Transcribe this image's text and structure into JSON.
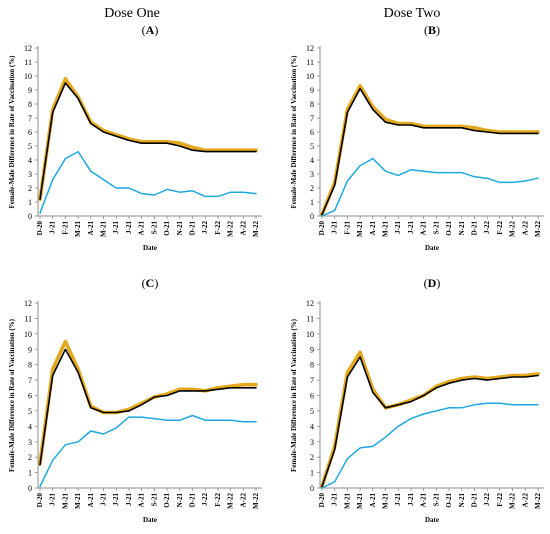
{
  "headers": {
    "left": "Dose One",
    "right": "Dose Two"
  },
  "colors": {
    "outer_gold": "#E3A81C",
    "inner_black": "#000000",
    "blue": "#1DA8DE",
    "axis": "#8c8c8c"
  },
  "chart_data": [
    {
      "type": "line",
      "panel_label": "A",
      "xlabel": "Date",
      "ylabel": "Female-Male Difference in Rate of Vaccination (%)",
      "ylim": [
        0,
        12
      ],
      "yticks": [
        0,
        1,
        2,
        3,
        4,
        5,
        6,
        7,
        8,
        9,
        10,
        11,
        12
      ],
      "grid": false,
      "x": [
        "D-20",
        "J-21",
        "F-21",
        "M-21",
        "A-21",
        "M-21",
        "J-21",
        "J-21",
        "A-21",
        "S-21",
        "O-21",
        "N-21",
        "D-21",
        "J-22",
        "F-22",
        "M-22",
        "A-22",
        "M-22"
      ],
      "series": [
        {
          "color": "gold",
          "values": [
            1.2,
            7.6,
            9.8,
            8.5,
            6.7,
            6.1,
            5.8,
            5.5,
            5.3,
            5.3,
            5.3,
            5.2,
            4.9,
            4.7,
            4.7,
            4.7,
            4.7,
            4.7
          ]
        },
        {
          "color": "black",
          "values": [
            1.2,
            7.4,
            9.5,
            8.4,
            6.6,
            6.0,
            5.7,
            5.4,
            5.2,
            5.2,
            5.2,
            5.0,
            4.7,
            4.6,
            4.6,
            4.6,
            4.6,
            4.6
          ]
        },
        {
          "color": "blue",
          "values": [
            0.2,
            2.6,
            4.1,
            4.6,
            3.2,
            2.6,
            2.0,
            2.0,
            1.6,
            1.5,
            1.9,
            1.7,
            1.8,
            1.4,
            1.4,
            1.7,
            1.7,
            1.6
          ]
        }
      ]
    },
    {
      "type": "line",
      "panel_label": "B",
      "xlabel": "Date",
      "ylabel": "Female-Male Difference in Rate of Vaccination (%)",
      "ylim": [
        0,
        12
      ],
      "yticks": [
        0,
        1,
        2,
        3,
        4,
        5,
        6,
        7,
        8,
        9,
        10,
        11,
        12
      ],
      "grid": false,
      "x": [
        "D-20",
        "J-21",
        "F-21",
        "M-21",
        "A-21",
        "M-21",
        "J-21",
        "J-21",
        "A-21",
        "S-21",
        "O-21",
        "N-21",
        "D-21",
        "J-22",
        "F-22",
        "M-22",
        "A-22",
        "M-22"
      ],
      "series": [
        {
          "color": "gold",
          "values": [
            0.1,
            2.4,
            7.6,
            9.3,
            7.8,
            6.9,
            6.6,
            6.6,
            6.4,
            6.4,
            6.4,
            6.4,
            6.3,
            6.1,
            6.0,
            6.0,
            6.0,
            6.0
          ]
        },
        {
          "color": "black",
          "values": [
            0.1,
            2.2,
            7.4,
            9.1,
            7.6,
            6.7,
            6.5,
            6.5,
            6.3,
            6.3,
            6.3,
            6.3,
            6.1,
            6.0,
            5.9,
            5.9,
            5.9,
            5.9
          ]
        },
        {
          "color": "blue",
          "values": [
            0.0,
            0.4,
            2.5,
            3.6,
            4.1,
            3.2,
            2.9,
            3.3,
            3.2,
            3.1,
            3.1,
            3.1,
            2.8,
            2.7,
            2.4,
            2.4,
            2.5,
            2.7
          ]
        }
      ]
    },
    {
      "type": "line",
      "panel_label": "C",
      "xlabel": "Date",
      "ylabel": "Female-Male Difference in Rate of Vaccination (%)",
      "ylim": [
        0,
        12
      ],
      "yticks": [
        0,
        1,
        2,
        3,
        4,
        5,
        6,
        7,
        8,
        9,
        10,
        11,
        12
      ],
      "grid": false,
      "x": [
        "D-20",
        "J-21",
        "M-21",
        "M-21",
        "A-21",
        "J-21",
        "J-21",
        "J-21",
        "A-21",
        "S-21",
        "O-21",
        "N-21",
        "D-21",
        "J-22",
        "F-22",
        "M-22",
        "A-22",
        "M-22"
      ],
      "series": [
        {
          "color": "gold",
          "values": [
            1.6,
            7.7,
            9.5,
            7.7,
            5.3,
            4.9,
            4.9,
            5.1,
            5.5,
            5.9,
            6.1,
            6.4,
            6.4,
            6.3,
            6.5,
            6.6,
            6.7,
            6.7
          ]
        },
        {
          "color": "black",
          "values": [
            1.5,
            7.3,
            9.0,
            7.5,
            5.2,
            4.9,
            4.9,
            5.0,
            5.4,
            5.9,
            6.0,
            6.3,
            6.3,
            6.3,
            6.4,
            6.5,
            6.5,
            6.5
          ]
        },
        {
          "color": "blue",
          "values": [
            0.1,
            1.8,
            2.8,
            3.0,
            3.7,
            3.5,
            3.9,
            4.6,
            4.6,
            4.5,
            4.4,
            4.4,
            4.7,
            4.4,
            4.4,
            4.4,
            4.3,
            4.3
          ]
        }
      ]
    },
    {
      "type": "line",
      "panel_label": "D",
      "xlabel": "Date",
      "ylabel": "Female-Male Difference in Rate of Vaccination (%)",
      "ylim": [
        0,
        12
      ],
      "yticks": [
        0,
        1,
        2,
        3,
        4,
        5,
        6,
        7,
        8,
        9,
        10,
        11,
        12
      ],
      "grid": false,
      "x": [
        "D-20",
        "J-21",
        "M-21",
        "M-21",
        "A-21",
        "M-21",
        "J-21",
        "J-21",
        "A-21",
        "S-21",
        "O-21",
        "N-21",
        "D-21",
        "J-22",
        "F-22",
        "M-22",
        "A-22",
        "M-22"
      ],
      "series": [
        {
          "color": "gold",
          "values": [
            0.1,
            2.7,
            7.5,
            8.8,
            6.4,
            5.2,
            5.4,
            5.7,
            6.0,
            6.6,
            6.9,
            7.1,
            7.2,
            7.1,
            7.2,
            7.3,
            7.3,
            7.4
          ]
        },
        {
          "color": "black",
          "values": [
            0.1,
            2.5,
            7.2,
            8.5,
            6.2,
            5.2,
            5.4,
            5.6,
            6.0,
            6.5,
            6.8,
            7.0,
            7.1,
            7.0,
            7.1,
            7.2,
            7.2,
            7.3
          ]
        },
        {
          "color": "blue",
          "values": [
            0.0,
            0.4,
            1.9,
            2.6,
            2.7,
            3.3,
            4.0,
            4.5,
            4.8,
            5.0,
            5.2,
            5.2,
            5.4,
            5.5,
            5.5,
            5.4,
            5.4,
            5.4
          ]
        }
      ]
    }
  ]
}
